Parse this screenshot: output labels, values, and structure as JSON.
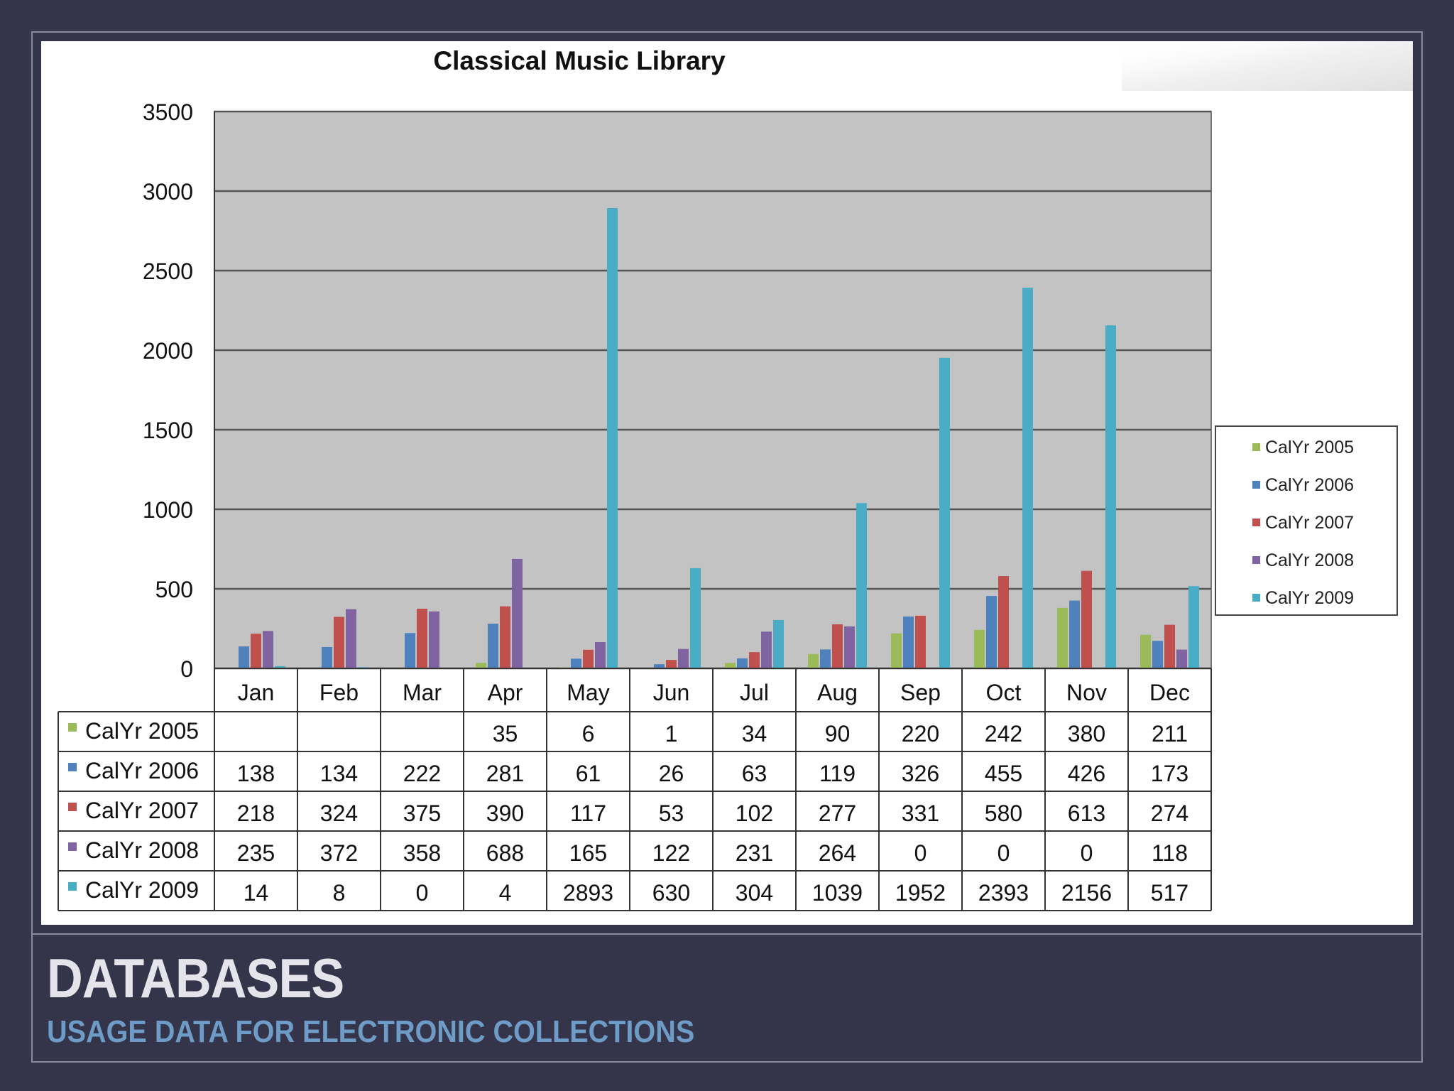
{
  "slide": {
    "title": "DATABASES",
    "subtitle": "USAGE DATA FOR ELECTRONIC COLLECTIONS"
  },
  "colors": {
    "background": "#34344a",
    "plot_area": "#c3c3c3",
    "title_text": "#e4e4ea",
    "subtitle_text": "#6f9cc6"
  },
  "chart_data": {
    "type": "bar",
    "title": "Classical Music Library",
    "xlabel": "",
    "ylabel": "",
    "ylim": [
      0,
      3500
    ],
    "yticks": [
      0,
      500,
      1000,
      1500,
      2000,
      2500,
      3000,
      3500
    ],
    "grid": true,
    "legend_position": "right",
    "data_table": true,
    "categories": [
      "Jan",
      "Feb",
      "Mar",
      "Apr",
      "May",
      "Jun",
      "Jul",
      "Aug",
      "Sep",
      "Oct",
      "Nov",
      "Dec"
    ],
    "series": [
      {
        "name": "CalYr 2005",
        "color": "#9bbb59",
        "values": [
          null,
          null,
          null,
          35,
          6,
          1,
          34,
          90,
          220,
          242,
          380,
          211
        ]
      },
      {
        "name": "CalYr 2006",
        "color": "#4f81bd",
        "values": [
          138,
          134,
          222,
          281,
          61,
          26,
          63,
          119,
          326,
          455,
          426,
          173
        ]
      },
      {
        "name": "CalYr 2007",
        "color": "#c0504d",
        "values": [
          218,
          324,
          375,
          390,
          117,
          53,
          102,
          277,
          331,
          580,
          613,
          274
        ]
      },
      {
        "name": "CalYr 2008",
        "color": "#8064a2",
        "values": [
          235,
          372,
          358,
          688,
          165,
          122,
          231,
          264,
          0,
          0,
          0,
          118
        ]
      },
      {
        "name": "CalYr 2009",
        "color": "#4bacc6",
        "values": [
          14,
          8,
          0,
          4,
          2893,
          630,
          304,
          1039,
          1952,
          2393,
          2156,
          517
        ]
      }
    ]
  }
}
